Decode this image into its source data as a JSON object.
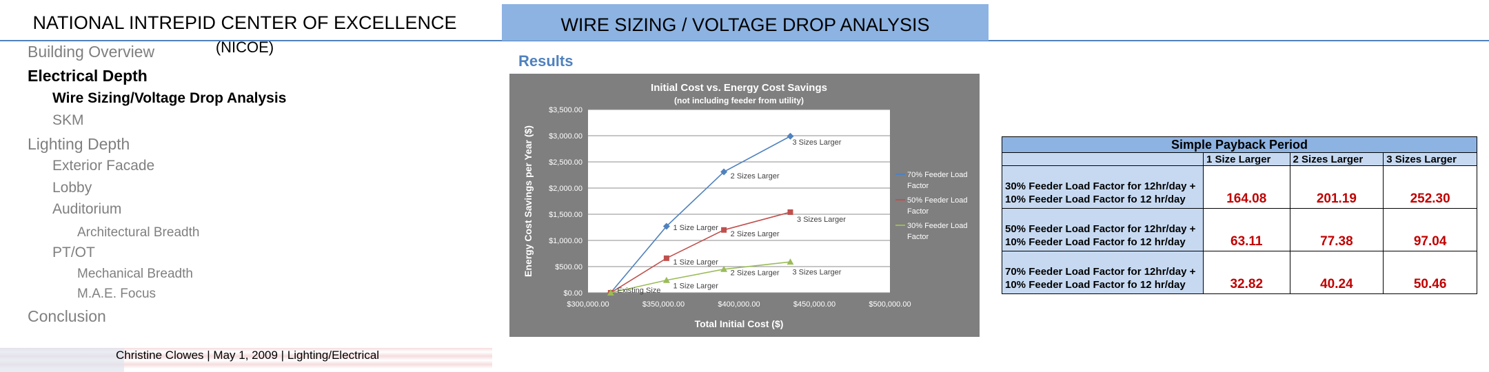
{
  "page_title": {
    "main": "NATIONAL INTREPID CENTER OF EXCELLENCE",
    "suffix": "(NICOE)"
  },
  "header": {
    "title": "WIRE SIZING / VOLTAGE DROP ANALYSIS"
  },
  "nav": {
    "items": [
      {
        "label": "Building Overview",
        "level": 1
      },
      {
        "label": "Electrical Depth",
        "level": 1,
        "active": true
      },
      {
        "label": "Wire Sizing/Voltage Drop Analysis",
        "level": 2,
        "active": true
      },
      {
        "label": "SKM",
        "level": 2
      },
      {
        "label": "Lighting Depth",
        "level": 1
      },
      {
        "label": "Exterior Facade",
        "level": 2
      },
      {
        "label": "Lobby",
        "level": 2
      },
      {
        "label": "Auditorium",
        "level": 2
      },
      {
        "label": "Architectural Breadth",
        "level": 3
      },
      {
        "label": "PT/OT",
        "level": 2
      },
      {
        "label": "Mechanical Breadth",
        "level": 3
      },
      {
        "label": "M.A.E. Focus",
        "level": 3
      },
      {
        "label": "Conclusion",
        "level": 1
      }
    ]
  },
  "footer": {
    "text": "Christine Clowes  |  May 1, 2009   |   Lighting/Electrical"
  },
  "results_label": "Results",
  "chart_data": {
    "type": "line",
    "title": "Initial Cost vs. Energy Cost Savings",
    "subtitle": "(not including feeder from utility)",
    "xlabel": "Total Initial Cost ($)",
    "ylabel": "Energy Cost Savings per Year ($)",
    "xlim": [
      300000,
      500000
    ],
    "ylim": [
      0,
      3500
    ],
    "xticks": [
      300000,
      350000,
      400000,
      450000,
      500000
    ],
    "xtick_labels": [
      "$300,000.00",
      "$350,000.00",
      "$400,000.00",
      "$450,000.00",
      "$500,000.00"
    ],
    "yticks": [
      0,
      500,
      1000,
      1500,
      2000,
      2500,
      3000,
      3500
    ],
    "ytick_labels": [
      "$0.00",
      "$500.00",
      "$1,000.00",
      "$1,500.00",
      "$2,000.00",
      "$2,500.00",
      "$3,000.00",
      "$3,500.00"
    ],
    "grid": true,
    "legend_position": "right",
    "series": [
      {
        "name": "70% Feeder Load Factor",
        "color": "#4f81bd",
        "marker": "diamond",
        "x": [
          315000,
          352000,
          390000,
          434000
        ],
        "y": [
          0,
          1270,
          2310,
          2990
        ]
      },
      {
        "name": "50% Feeder Load Factor",
        "color": "#c0504d",
        "marker": "square",
        "x": [
          315000,
          352000,
          390000,
          434000
        ],
        "y": [
          0,
          660,
          1200,
          1540
        ]
      },
      {
        "name": "30% Feeder Load Factor",
        "color": "#9bbb59",
        "marker": "triangle",
        "x": [
          315000,
          352000,
          390000,
          434000
        ],
        "y": [
          0,
          240,
          450,
          590
        ]
      }
    ],
    "annotations": [
      {
        "text": "Existing Size",
        "x": 318000,
        "y": 50
      },
      {
        "text": "1 Size Larger",
        "x": 355000,
        "y": 1250
      },
      {
        "text": "2 Sizes Larger",
        "x": 393000,
        "y": 2240
      },
      {
        "text": "3 Sizes Larger",
        "x": 434000,
        "y": 2880
      },
      {
        "text": "1 Size Larger",
        "x": 355000,
        "y": 590
      },
      {
        "text": "2 Sizes Larger",
        "x": 393000,
        "y": 1130
      },
      {
        "text": "3 Sizes Larger",
        "x": 437000,
        "y": 1410
      },
      {
        "text": "1 Size Larger",
        "x": 355000,
        "y": 140
      },
      {
        "text": "2 Sizes Larger",
        "x": 393000,
        "y": 390
      },
      {
        "text": "3 Sizes Larger",
        "x": 434000,
        "y": 400
      }
    ]
  },
  "payback": {
    "title": "Simple Payback Period",
    "columns": [
      "1 Size Larger",
      "2 Sizes Larger",
      "3 Sizes Larger"
    ],
    "rows": [
      {
        "label_line1": "30% Feeder Load Factor for 12hr/day +",
        "label_line2": "10% Feeder Load Factor fo 12 hr/day",
        "values": [
          "164.08",
          "201.19",
          "252.30"
        ]
      },
      {
        "label_line1": "50% Feeder Load Factor for 12hr/day +",
        "label_line2": "10% Feeder Load Factor fo 12 hr/day",
        "values": [
          "63.11",
          "77.38",
          "97.04"
        ]
      },
      {
        "label_line1": "70% Feeder Load Factor for 12hr/day +",
        "label_line2": "10% Feeder Load Factor fo 12 hr/day",
        "values": [
          "32.82",
          "40.24",
          "50.46"
        ]
      }
    ]
  }
}
